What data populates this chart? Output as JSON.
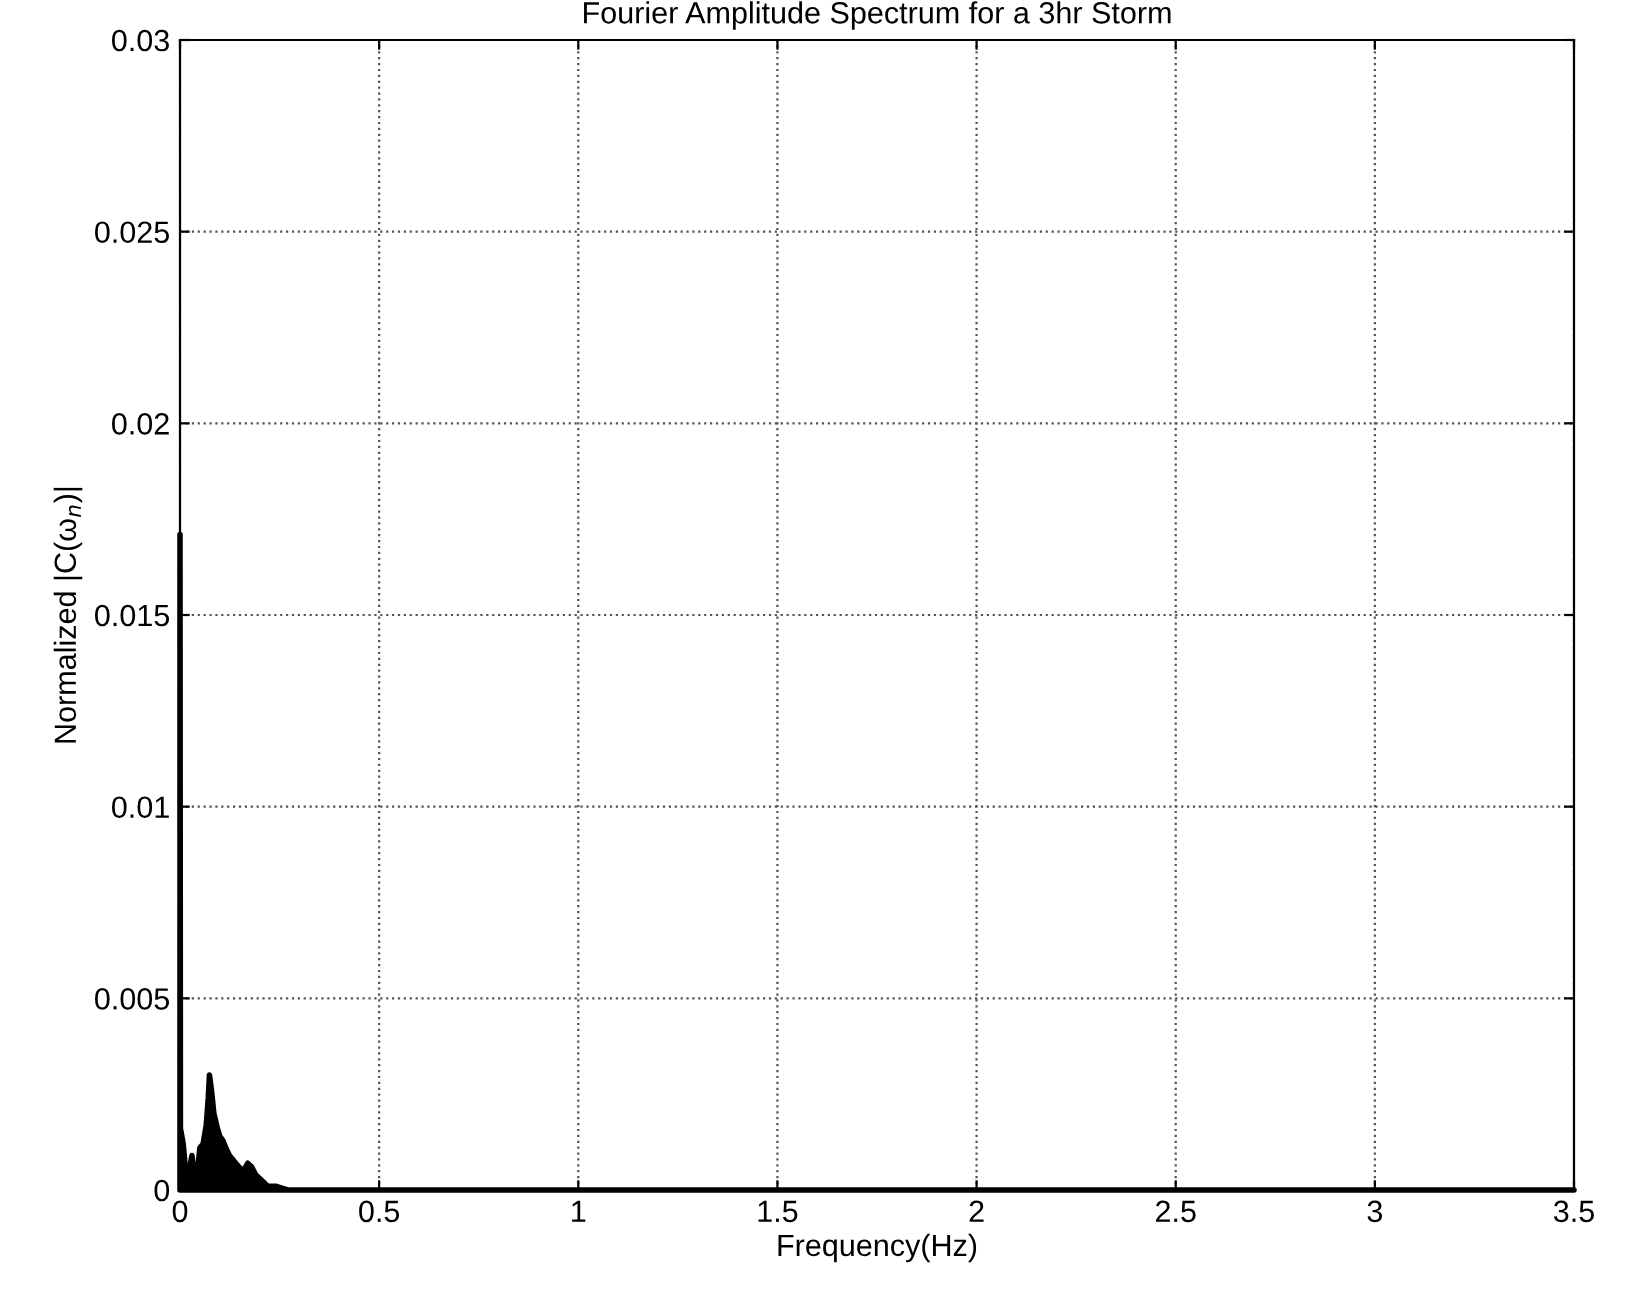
{
  "chart_data": {
    "type": "area",
    "title": "Fourier Amplitude Spectrum for a 3hr Storm",
    "xlabel": "Frequency(Hz)",
    "ylabel": "Normalized |C(ω$_{n}$)|",
    "series": [
      {
        "color": "#000000",
        "x": [
          0,
          0.001,
          0.003,
          0.008,
          0.016,
          0.025,
          0.03,
          0.038,
          0.045,
          0.05,
          0.058,
          0.066,
          0.071,
          0.074,
          0.079,
          0.085,
          0.094,
          0.1,
          0.107,
          0.115,
          0.124,
          0.132,
          0.14,
          0.148,
          0.157,
          0.165,
          0.17,
          0.18,
          0.19,
          0.2,
          0.21,
          0.22,
          0.24,
          0.27,
          0.3,
          0.35,
          0.5,
          1,
          2,
          3,
          3.5
        ],
        "values": [
          0.0171,
          0.0016,
          0.0015,
          0.0012,
          0.0003,
          0.0006,
          0.0009,
          0.0002,
          0.0006,
          0.0011,
          0.0012,
          0.0017,
          0.0024,
          0.003,
          0.0026,
          0.002,
          0.0016,
          0.0014,
          0.0013,
          0.0011,
          0.0009,
          0.0008,
          0.0007,
          0.0006,
          0.0005,
          0.0006,
          0.0007,
          0.0006,
          0.0004,
          0.0003,
          0.0002,
          0.0001,
          0.0001,
          0,
          0,
          0,
          0,
          0,
          0,
          0,
          0
        ]
      }
    ],
    "xlim": [
      0,
      3.5
    ],
    "ylim": [
      0,
      0.03
    ],
    "xticks": [
      0,
      0.5,
      1,
      1.5,
      2,
      2.5,
      3,
      3.5
    ],
    "yticks": [
      0,
      0.005,
      0.01,
      0.015,
      0.02,
      0.025,
      0.03
    ],
    "grid": true,
    "legend": false
  }
}
